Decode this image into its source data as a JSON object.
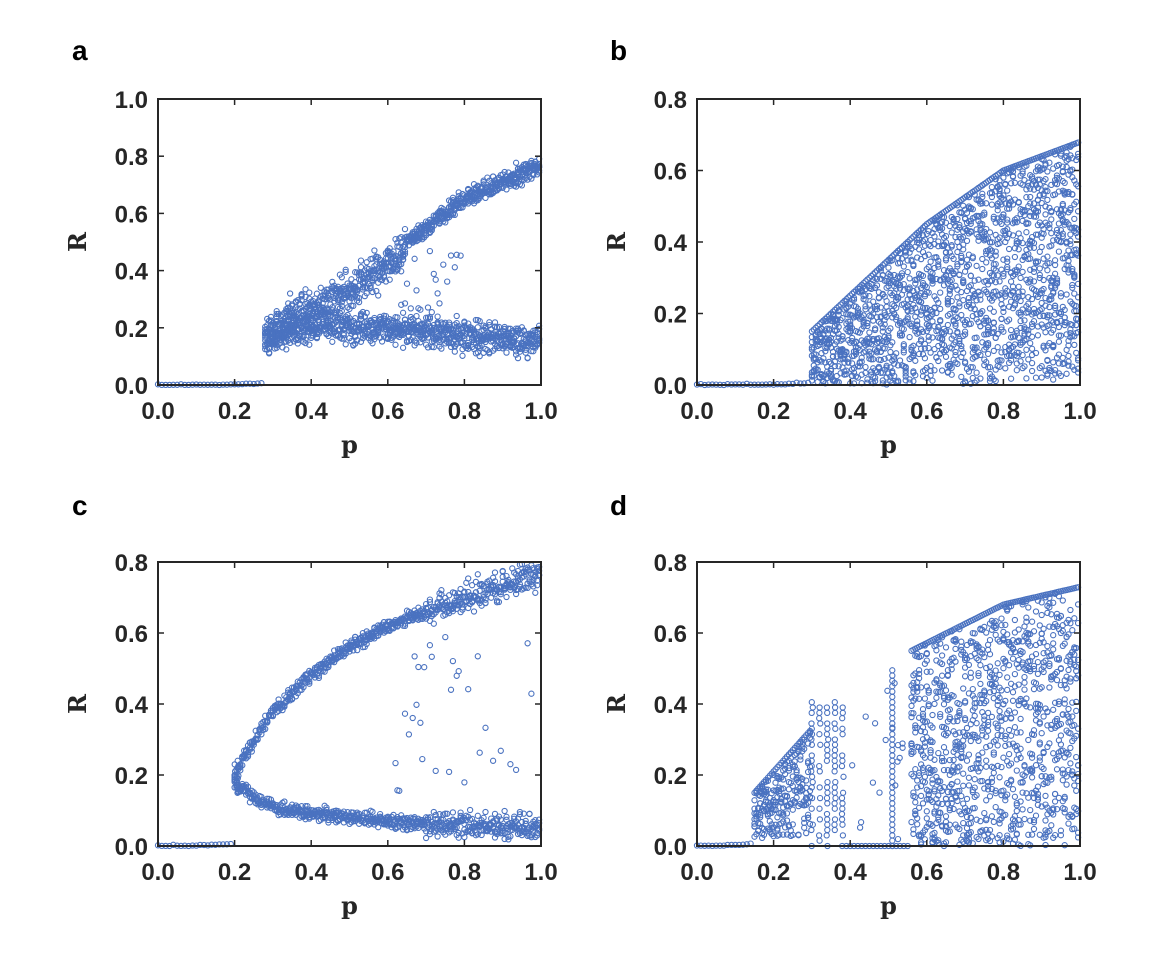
{
  "marker_color": "#4a72c0",
  "chart_data": [
    {
      "type": "scatter",
      "panel": "a",
      "xlabel": "p",
      "ylabel": "R",
      "xlim": [
        0.0,
        1.0
      ],
      "ylim": [
        0.0,
        1.0
      ],
      "xticks": [
        "0.0",
        "0.2",
        "0.4",
        "0.6",
        "0.8",
        "1.0"
      ],
      "yticks": [
        "0.0",
        "0.2",
        "0.4",
        "0.6",
        "0.8",
        "1.0"
      ],
      "grid": false,
      "marker": "open-circle",
      "transition_p": 0.28,
      "branches": [
        {
          "name": "lower",
          "points": [
            [
              0.0,
              0.0
            ],
            [
              0.27,
              0.01
            ],
            [
              0.28,
              0.15
            ],
            [
              0.4,
              0.2
            ],
            [
              0.6,
              0.2
            ],
            [
              0.8,
              0.17
            ],
            [
              1.0,
              0.15
            ]
          ],
          "spread": 0.08
        },
        {
          "name": "upper",
          "points": [
            [
              0.28,
              0.18
            ],
            [
              0.4,
              0.28
            ],
            [
              0.5,
              0.33
            ],
            [
              0.6,
              0.42
            ],
            [
              0.65,
              0.5
            ],
            [
              0.8,
              0.65
            ],
            [
              1.0,
              0.77
            ]
          ],
          "spread": 0.1
        }
      ]
    },
    {
      "type": "scatter",
      "panel": "b",
      "xlabel": "p",
      "ylabel": "R",
      "xlim": [
        0.0,
        1.0
      ],
      "ylim": [
        0.0,
        0.8
      ],
      "xticks": [
        "0.0",
        "0.2",
        "0.4",
        "0.6",
        "0.8",
        "1.0"
      ],
      "yticks": [
        "0.0",
        "0.2",
        "0.4",
        "0.6",
        "0.8"
      ],
      "grid": false,
      "marker": "open-circle",
      "transition_p": 0.3,
      "envelope": {
        "lower": 0.0,
        "upper": [
          [
            0.3,
            0.15
          ],
          [
            0.4,
            0.25
          ],
          [
            0.6,
            0.45
          ],
          [
            0.8,
            0.6
          ],
          [
            1.0,
            0.68
          ]
        ]
      }
    },
    {
      "type": "scatter",
      "panel": "c",
      "xlabel": "p",
      "ylabel": "R",
      "xlim": [
        0.0,
        1.0
      ],
      "ylim": [
        0.0,
        0.8
      ],
      "xticks": [
        "0.0",
        "0.2",
        "0.4",
        "0.6",
        "0.8",
        "1.0"
      ],
      "yticks": [
        "0.0",
        "0.2",
        "0.4",
        "0.6",
        "0.8"
      ],
      "grid": false,
      "marker": "open-circle",
      "transition_p": 0.2,
      "branches": [
        {
          "name": "upper",
          "points": [
            [
              0.2,
              0.2
            ],
            [
              0.25,
              0.3
            ],
            [
              0.3,
              0.38
            ],
            [
              0.4,
              0.48
            ],
            [
              0.5,
              0.56
            ],
            [
              0.6,
              0.62
            ],
            [
              0.8,
              0.7
            ],
            [
              1.0,
              0.77
            ]
          ],
          "spread": 0.03
        },
        {
          "name": "lower",
          "points": [
            [
              0.2,
              0.18
            ],
            [
              0.25,
              0.14
            ],
            [
              0.3,
              0.11
            ],
            [
              0.4,
              0.09
            ],
            [
              0.6,
              0.07
            ],
            [
              0.8,
              0.06
            ],
            [
              1.0,
              0.05
            ]
          ],
          "spread": 0.03
        }
      ]
    },
    {
      "type": "scatter",
      "panel": "d",
      "xlabel": "p",
      "ylabel": "R",
      "xlim": [
        0.0,
        1.0
      ],
      "ylim": [
        0.0,
        0.8
      ],
      "xticks": [
        "0.0",
        "0.2",
        "0.4",
        "0.6",
        "0.8",
        "1.0"
      ],
      "yticks": [
        "0.0",
        "0.2",
        "0.4",
        "0.6",
        "0.8"
      ],
      "grid": false,
      "marker": "open-circle",
      "regions": [
        {
          "p_range": [
            0.15,
            0.3
          ],
          "upper": [
            [
              0.15,
              0.15
            ],
            [
              0.3,
              0.33
            ]
          ]
        },
        {
          "p_range": [
            0.3,
            0.39
          ],
          "columns": true,
          "upper": 0.42
        },
        {
          "p_range": [
            0.39,
            0.56
          ],
          "sparse": true,
          "upper": 0.52
        },
        {
          "p_range": [
            0.56,
            1.0
          ],
          "upper": [
            [
              0.56,
              0.55
            ],
            [
              0.8,
              0.68
            ],
            [
              1.0,
              0.73
            ]
          ]
        }
      ]
    }
  ]
}
